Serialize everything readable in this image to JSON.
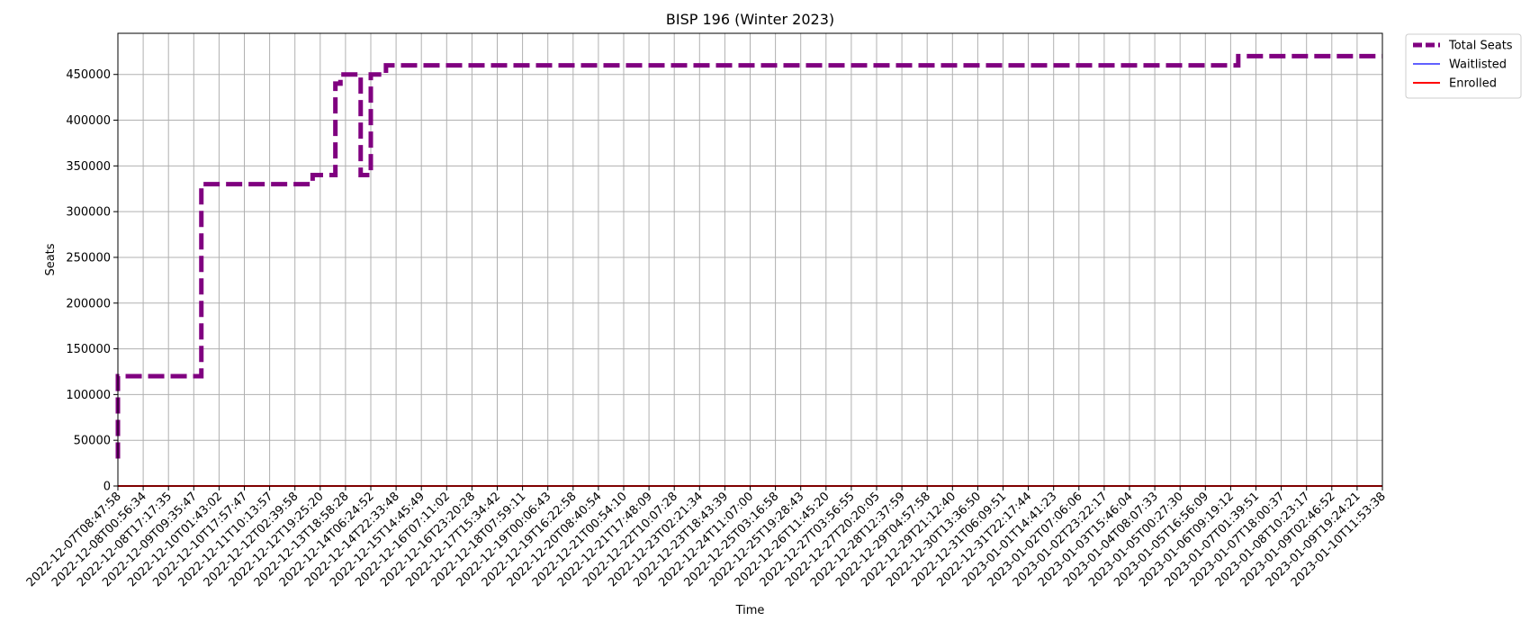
{
  "chart_data": {
    "type": "line",
    "title": "BISP 196 (Winter 2023)",
    "xlabel": "Time",
    "ylabel": "Seats",
    "ylim": [
      0,
      495000
    ],
    "yticks": [
      0,
      50000,
      100000,
      150000,
      200000,
      250000,
      300000,
      350000,
      400000,
      450000
    ],
    "ytick_labels": [
      "0",
      "50000",
      "100000",
      "150000",
      "200000",
      "250000",
      "300000",
      "350000",
      "400000",
      "450000"
    ],
    "xticks": [
      "2022-12-07T08:47:58",
      "2022-12-08T00:56:34",
      "2022-12-08T17:17:35",
      "2022-12-09T09:35:47",
      "2022-12-10T01:43:02",
      "2022-12-10T17:57:47",
      "2022-12-11T10:13:57",
      "2022-12-12T02:39:58",
      "2022-12-12T19:25:20",
      "2022-12-13T18:58:28",
      "2022-12-14T06:24:52",
      "2022-12-14T22:33:48",
      "2022-12-15T14:45:49",
      "2022-12-16T07:11:02",
      "2022-12-16T23:20:28",
      "2022-12-17T15:34:42",
      "2022-12-18T07:59:11",
      "2022-12-19T00:06:43",
      "2022-12-19T16:22:58",
      "2022-12-20T08:40:54",
      "2022-12-21T00:54:10",
      "2022-12-21T17:48:09",
      "2022-12-22T10:07:28",
      "2022-12-23T02:21:34",
      "2022-12-23T18:43:39",
      "2022-12-24T11:07:00",
      "2022-12-25T03:16:58",
      "2022-12-25T19:28:43",
      "2022-12-26T11:45:20",
      "2022-12-27T03:56:55",
      "2022-12-27T20:20:05",
      "2022-12-28T12:37:59",
      "2022-12-29T04:57:58",
      "2022-12-29T21:12:40",
      "2022-12-30T13:36:50",
      "2022-12-31T06:09:51",
      "2022-12-31T22:17:44",
      "2023-01-01T14:41:23",
      "2023-01-02T07:06:06",
      "2023-01-02T23:22:17",
      "2023-01-03T15:46:04",
      "2023-01-04T08:07:33",
      "2023-01-05T00:27:30",
      "2023-01-05T16:56:09",
      "2023-01-06T09:19:12",
      "2023-01-07T01:39:51",
      "2023-01-07T18:00:37",
      "2023-01-08T10:23:17",
      "2023-01-09T02:46:52",
      "2023-01-09T19:24:21",
      "2023-01-10T11:53:38"
    ],
    "grid": true,
    "legend_position": "outside top-right",
    "series": [
      {
        "name": "Total Seats",
        "color": "#800080",
        "style": "dashed",
        "step_points": [
          [
            0.0,
            30000
          ],
          [
            0.0,
            120000
          ],
          [
            3.3,
            120000
          ],
          [
            3.3,
            330000
          ],
          [
            7.7,
            330000
          ],
          [
            7.7,
            340000
          ],
          [
            8.6,
            340000
          ],
          [
            8.6,
            440000
          ],
          [
            8.8,
            440000
          ],
          [
            8.8,
            450000
          ],
          [
            9.6,
            450000
          ],
          [
            9.6,
            340000
          ],
          [
            10.0,
            340000
          ],
          [
            10.0,
            450000
          ],
          [
            10.6,
            450000
          ],
          [
            10.6,
            460000
          ],
          [
            44.3,
            460000
          ],
          [
            44.3,
            470000
          ],
          [
            50.0,
            470000
          ]
        ]
      },
      {
        "name": "Waitlisted",
        "color": "#0000ff",
        "style": "solid",
        "step_points": [
          [
            0.0,
            0
          ],
          [
            50.0,
            0
          ]
        ]
      },
      {
        "name": "Enrolled",
        "color": "#ff0000",
        "style": "solid",
        "step_points": [
          [
            0.0,
            0
          ],
          [
            50.0,
            0
          ]
        ]
      }
    ]
  }
}
